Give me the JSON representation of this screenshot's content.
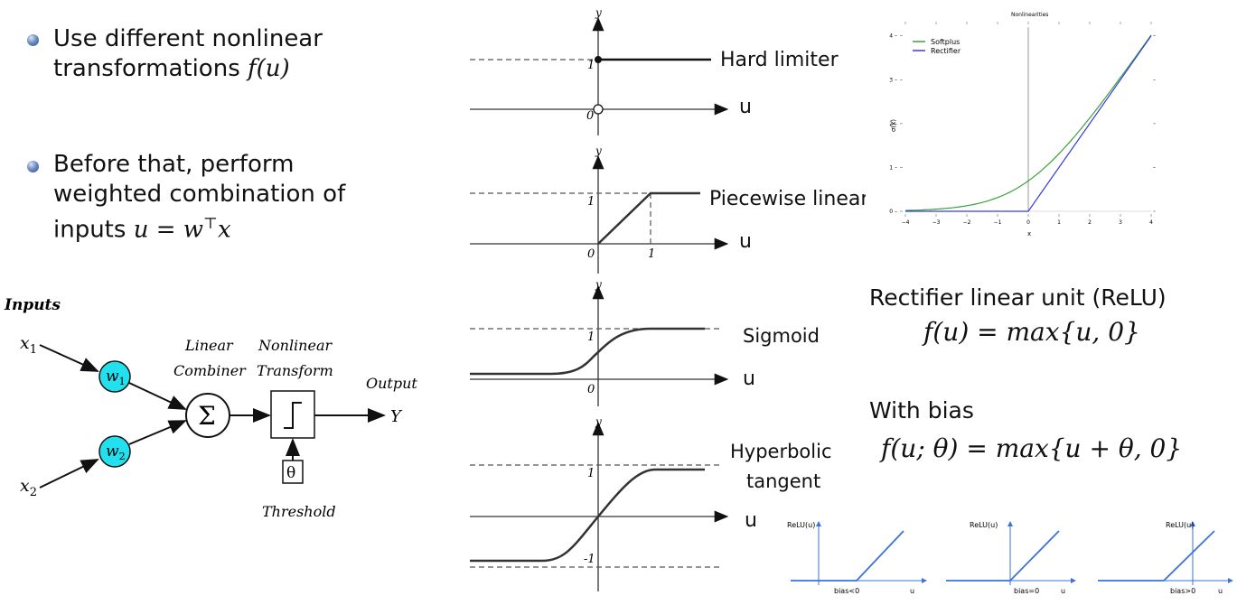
{
  "bullets": [
    {
      "line1": "Use different nonlinear",
      "line2_prefix": "transformations ",
      "line2_math": "f",
      "line2_suffix": "(u)"
    },
    {
      "line1": "Before that, perform",
      "line2": "weighted combination of",
      "line3_prefix": "inputs ",
      "line3_math": "u = w",
      "line3_sup": "⊤",
      "line3_tail": "x"
    }
  ],
  "neuron": {
    "inputs_label": "Inputs",
    "x1": "x",
    "x1_sub": "1",
    "x2": "x",
    "x2_sub": "2",
    "w1": "w",
    "w1_sub": "1",
    "w2": "w",
    "w2_sub": "2",
    "sum_symbol": "Σ",
    "combiner_l1": "Linear",
    "combiner_l2": "Combiner",
    "transform_l1": "Nonlinear",
    "transform_l2": "Transform",
    "output_label": "Output",
    "output_var": "Y",
    "theta": "θ",
    "threshold_label": "Threshold"
  },
  "activations": [
    {
      "name": "Hard limiter",
      "axis_u": "u",
      "y": "y",
      "ticks": [
        "1",
        "0"
      ]
    },
    {
      "name": "Piecewise linear",
      "axis_u": "u",
      "y": "y",
      "ticks": [
        "1",
        "0",
        "1"
      ]
    },
    {
      "name": "Sigmoid",
      "axis_u": "u",
      "y": "y",
      "ticks": [
        "1",
        "0"
      ]
    },
    {
      "name_l1": "Hyperbolic",
      "name_l2": "tangent",
      "axis_u": "u",
      "y": "y",
      "ticks": [
        "1",
        "-1"
      ]
    }
  ],
  "nonlin_chart": {
    "title": "Nonlinearities",
    "ylabel": "σ(x)",
    "xlabel": "x",
    "legend": [
      "Softplus",
      "Rectifier"
    ],
    "xticks": [
      "-4",
      "-3",
      "-2",
      "-1",
      "0",
      "1",
      "2",
      "3",
      "4"
    ],
    "yticks": [
      "0",
      "1",
      "2",
      "3",
      "4"
    ]
  },
  "chart_data": {
    "type": "line",
    "title": "Nonlinearities",
    "xlabel": "x",
    "ylabel": "σ(x)",
    "xlim": [
      -4,
      4
    ],
    "ylim": [
      0,
      4.2
    ],
    "legend_position": "top-left",
    "grid": false,
    "x": [
      -4,
      -3,
      -2,
      -1,
      0,
      1,
      2,
      3,
      4
    ],
    "series": [
      {
        "name": "Softplus",
        "color": "#3aa23a",
        "values": [
          0.018,
          0.049,
          0.127,
          0.313,
          0.693,
          1.313,
          2.127,
          3.049,
          4.018
        ]
      },
      {
        "name": "Rectifier",
        "color": "#3a3ae0",
        "values": [
          0,
          0,
          0,
          0,
          0,
          1,
          2,
          3,
          4
        ]
      }
    ]
  },
  "relu": {
    "title": "Rectifier linear unit (ReLU)",
    "formula": "f(u) = max{u, 0}",
    "bias_title": "With bias",
    "bias_formula": "f(u; θ) = max{u + θ, 0}"
  },
  "mini_plots": [
    {
      "ylabel": "ReLU(u)",
      "caption": "bias<0",
      "axis": "u"
    },
    {
      "ylabel": "ReLU(u)",
      "caption": "bias=0",
      "axis": "u"
    },
    {
      "ylabel": "ReLU(u)",
      "caption": "bias>0",
      "axis": "u"
    }
  ],
  "colors": {
    "neuron_fill": "#22e0ee",
    "softplus": "#3aa23a",
    "rectifier": "#3a3ae0",
    "mini_line": "#3b73d6"
  }
}
